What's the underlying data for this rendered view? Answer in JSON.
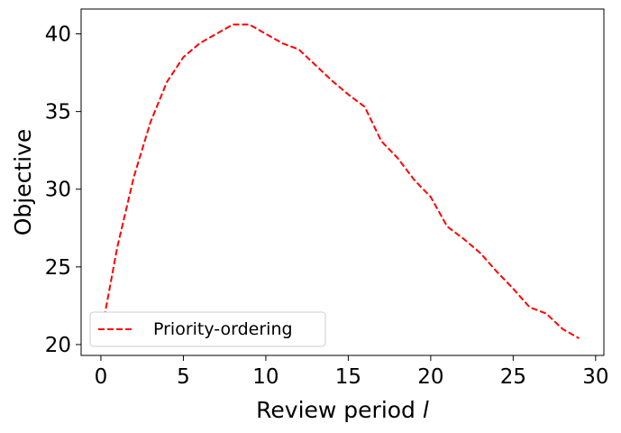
{
  "chart_data": {
    "type": "line",
    "title": "",
    "xlabel": "Review period",
    "xlabel_var": "l",
    "ylabel": "Objective",
    "xlim": [
      -1.2,
      30.5
    ],
    "ylim": [
      19.3,
      41.6
    ],
    "xticks": [
      0,
      5,
      10,
      15,
      20,
      25,
      30
    ],
    "yticks": [
      20,
      25,
      30,
      35,
      40
    ],
    "grid": false,
    "legend_position": "lower-left",
    "series": [
      {
        "name": "Priority-ordering",
        "color": "#ff0000",
        "style": "dashed",
        "x": [
          0,
          1,
          2,
          3,
          4,
          5,
          6,
          7,
          8,
          9,
          10,
          11,
          12,
          13,
          14,
          15,
          16,
          17,
          18,
          19,
          20,
          21,
          22,
          23,
          24,
          25,
          26,
          27,
          28,
          29
        ],
        "y": [
          20.6,
          26.3,
          30.8,
          34.3,
          36.9,
          38.5,
          39.4,
          40.0,
          40.6,
          40.6,
          40.0,
          39.4,
          39.0,
          38.0,
          37.0,
          36.1,
          35.3,
          33.1,
          32.0,
          30.6,
          29.5,
          27.6,
          26.8,
          25.9,
          24.7,
          23.6,
          22.4,
          22.0,
          21.0,
          20.4
        ]
      }
    ]
  }
}
